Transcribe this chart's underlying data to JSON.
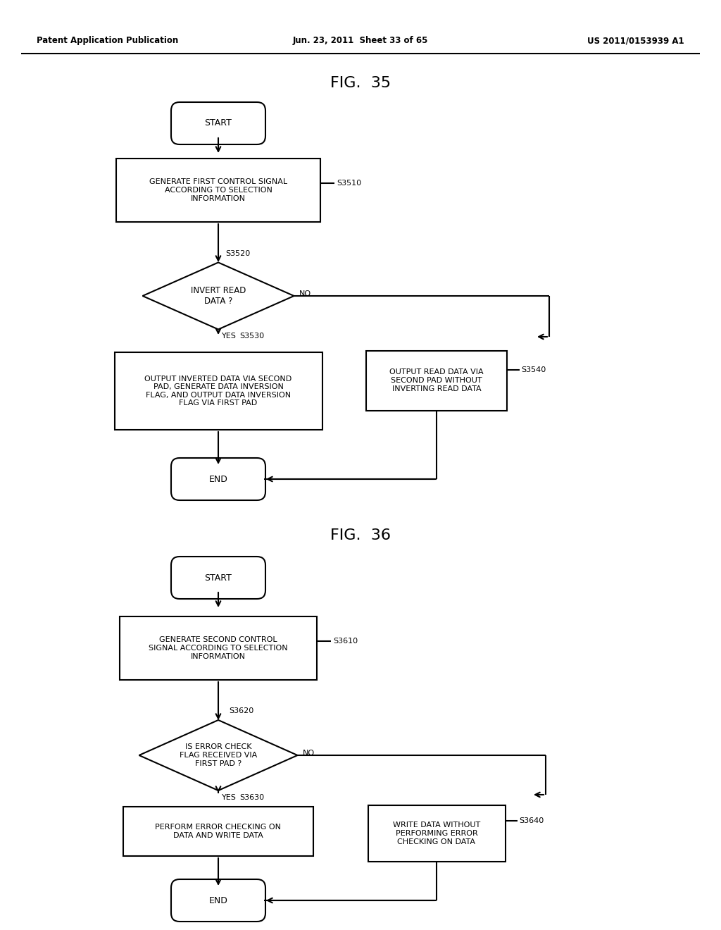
{
  "header_left": "Patent Application Publication",
  "header_mid": "Jun. 23, 2011  Sheet 33 of 65",
  "header_right": "US 2011/0153939 A1",
  "fig35_title": "FIG.  35",
  "fig36_title": "FIG.  36",
  "bg_color": "#ffffff",
  "line_color": "#000000",
  "text_color": "#000000",
  "fig35": {
    "start_label": "START",
    "s3510_label": "S3510",
    "s3510_text": "GENERATE FIRST CONTROL SIGNAL\nACCORDING TO SELECTION\nINFORMATION",
    "s3520_label": "S3520",
    "s3520_text": "INVERT READ\nDATA ?",
    "s3530_label": "S3530",
    "s3530_text": "OUTPUT INVERTED DATA VIA SECOND\nPAD, GENERATE DATA INVERSION\nFLAG, AND OUTPUT DATA INVERSION\nFLAG VIA FIRST PAD",
    "s3540_label": "S3540",
    "s3540_text": "OUTPUT READ DATA VIA\nSECOND PAD WITHOUT\nINVERTING READ DATA",
    "end_label": "END",
    "yes_label": "YES",
    "no_label": "NO"
  },
  "fig36": {
    "start_label": "START",
    "s3610_label": "S3610",
    "s3610_text": "GENERATE SECOND CONTROL\nSIGNAL ACCORDING TO SELECTION\nINFORMATION",
    "s3620_label": "S3620",
    "s3620_text": "IS ERROR CHECK\nFLAG RECEIVED VIA\nFIRST PAD ?",
    "s3630_label": "S3630",
    "s3630_text": "PERFORM ERROR CHECKING ON\nDATA AND WRITE DATA",
    "s3640_label": "S3640",
    "s3640_text": "WRITE DATA WITHOUT\nPERFORMING ERROR\nCHECKING ON DATA",
    "end_label": "END",
    "yes_label": "YES",
    "no_label": "NO"
  }
}
